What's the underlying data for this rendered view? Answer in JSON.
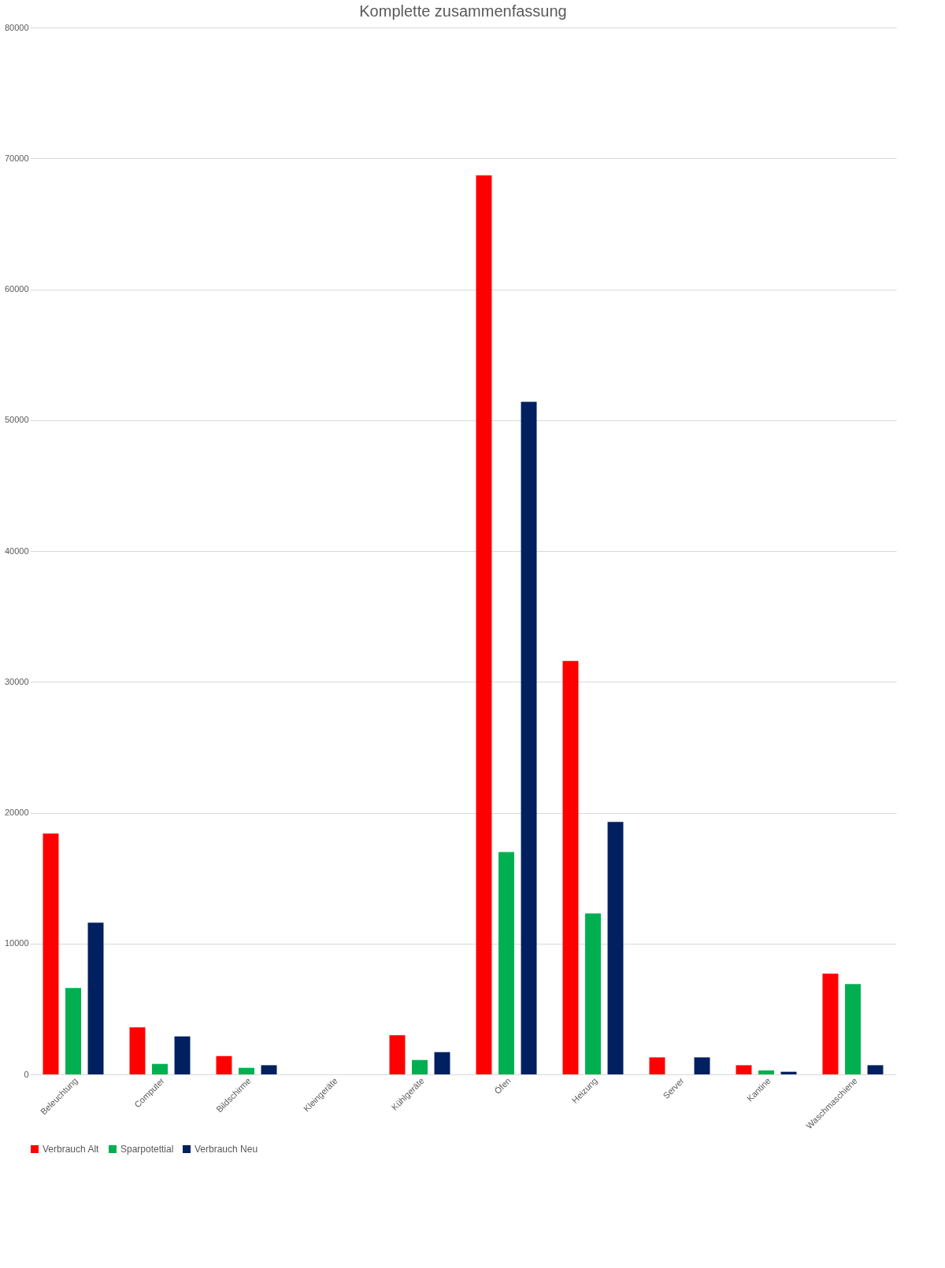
{
  "chart_data": {
    "type": "bar",
    "title": "Komplette zusammenfassung",
    "categories": [
      "Beleuchtung",
      "Computer",
      "Bildschirme",
      "Kleingeräte",
      "Kühlgeräte",
      "Öfen",
      "Heizung",
      "Server",
      "Kantine",
      "Waschmaschiene"
    ],
    "series": [
      {
        "name": "Verbrauch Alt",
        "color": "#ff0000",
        "values": [
          18400,
          3600,
          1400,
          0,
          3000,
          68700,
          31600,
          1300,
          700,
          7700
        ]
      },
      {
        "name": "Sparpotettial",
        "color": "#00b050",
        "values": [
          6600,
          800,
          500,
          0,
          1100,
          17000,
          12300,
          0,
          300,
          6900
        ]
      },
      {
        "name": "Verbrauch Neu",
        "color": "#002060",
        "values": [
          11600,
          2900,
          700,
          0,
          1700,
          51400,
          19300,
          1300,
          200,
          700
        ]
      }
    ],
    "ylim": [
      0,
      80000
    ],
    "yticks": [
      0,
      10000,
      20000,
      30000,
      40000,
      50000,
      60000,
      70000,
      80000
    ],
    "grid": "y",
    "legend": "bottom"
  }
}
